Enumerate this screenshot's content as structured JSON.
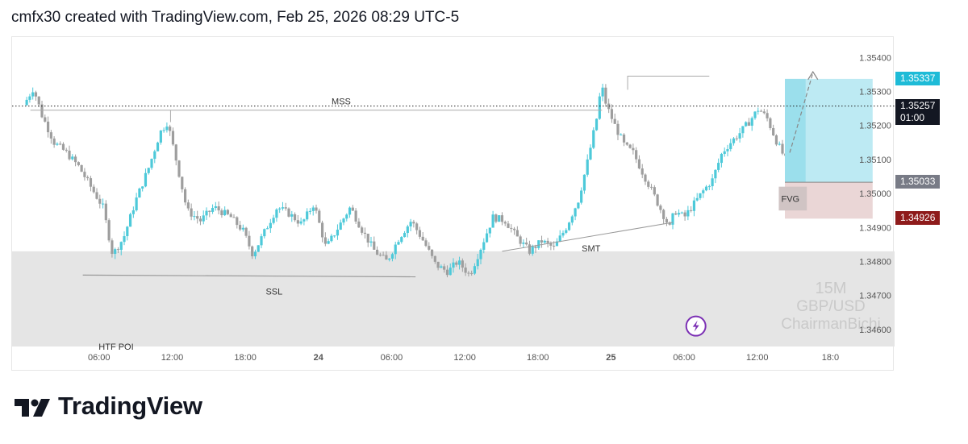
{
  "header": {
    "text": "cmfx30 created with TradingView.com, Feb 25, 2026 08:29 UTC-5"
  },
  "brand": {
    "name": "TradingView"
  },
  "watermark": {
    "lines": [
      "15M",
      "GBP/USD",
      "ChairmanBichi"
    ]
  },
  "colors": {
    "candle_up": "#4dc9d9",
    "candle_down": "#9e9e9e",
    "zone": "#e5e5e5",
    "tp_zone": "#bdeaf3",
    "sl_zone": "#ead6d6",
    "price_tag": "#1ebbd7",
    "current_tag": "#131722",
    "entry_tag": "#787b86",
    "stop_tag": "#8e1b1b",
    "accent_purple": "#7b2fb4"
  },
  "chart_data": {
    "type": "candlestick",
    "symbol": "GBP/USD",
    "timeframe": "15M",
    "y_ticks": [
      "1.35400",
      "1.35300",
      "1.35200",
      "1.35100",
      "1.35000",
      "1.34900",
      "1.34800",
      "1.34700",
      "1.34600"
    ],
    "ylim": [
      1.3455,
      1.3546
    ],
    "x_ticks": [
      {
        "label": "06:00",
        "t": 6,
        "bold": false
      },
      {
        "label": "12:00",
        "t": 12,
        "bold": false
      },
      {
        "label": "18:00",
        "t": 18,
        "bold": false
      },
      {
        "label": "24",
        "t": 24,
        "bold": true
      },
      {
        "label": "06:00",
        "t": 30,
        "bold": false
      },
      {
        "label": "12:00",
        "t": 36,
        "bold": false
      },
      {
        "label": "18:00",
        "t": 42,
        "bold": false
      },
      {
        "label": "25",
        "t": 48,
        "bold": true
      },
      {
        "label": "06:00",
        "t": 54,
        "bold": false
      },
      {
        "label": "12:00",
        "t": 60,
        "bold": false
      },
      {
        "label": "18:0",
        "t": 66,
        "bold": false
      }
    ],
    "xlim": [
      0,
      64
    ],
    "series_keypoints": [
      [
        0,
        1.3526
      ],
      [
        0.8,
        1.3531
      ],
      [
        1.5,
        1.3523
      ],
      [
        2.5,
        1.3515
      ],
      [
        3.5,
        1.3512
      ],
      [
        4.5,
        1.3508
      ],
      [
        5.5,
        1.3502
      ],
      [
        6.5,
        1.3496
      ],
      [
        7.3,
        1.3482
      ],
      [
        8.2,
        1.3487
      ],
      [
        9.2,
        1.3498
      ],
      [
        10.3,
        1.3508
      ],
      [
        11.2,
        1.3518
      ],
      [
        11.8,
        1.3521
      ],
      [
        12.5,
        1.351
      ],
      [
        13.4,
        1.3495
      ],
      [
        14.5,
        1.3492
      ],
      [
        15.6,
        1.3496
      ],
      [
        17.0,
        1.3493
      ],
      [
        18.0,
        1.3489
      ],
      [
        18.8,
        1.3482
      ],
      [
        19.8,
        1.3489
      ],
      [
        20.8,
        1.3496
      ],
      [
        21.8,
        1.3494
      ],
      [
        22.8,
        1.3491
      ],
      [
        23.8,
        1.3497
      ],
      [
        24.8,
        1.3484
      ],
      [
        25.8,
        1.349
      ],
      [
        26.8,
        1.3496
      ],
      [
        27.8,
        1.3489
      ],
      [
        28.8,
        1.3483
      ],
      [
        29.8,
        1.348
      ],
      [
        30.8,
        1.3487
      ],
      [
        31.8,
        1.3492
      ],
      [
        32.8,
        1.3486
      ],
      [
        33.8,
        1.3479
      ],
      [
        34.8,
        1.3477
      ],
      [
        35.6,
        1.348
      ],
      [
        36.6,
        1.3476
      ],
      [
        37.5,
        1.3484
      ],
      [
        38.5,
        1.3493
      ],
      [
        39.5,
        1.3492
      ],
      [
        40.5,
        1.3487
      ],
      [
        41.5,
        1.3483
      ],
      [
        42.5,
        1.3486
      ],
      [
        43.5,
        1.3484
      ],
      [
        44.5,
        1.349
      ],
      [
        45.5,
        1.3498
      ],
      [
        46.3,
        1.351
      ],
      [
        47.0,
        1.3522
      ],
      [
        47.4,
        1.3532
      ],
      [
        47.8,
        1.3526
      ],
      [
        48.5,
        1.352
      ],
      [
        49.3,
        1.3514
      ],
      [
        50.0,
        1.3512
      ],
      [
        50.8,
        1.3506
      ],
      [
        51.5,
        1.3501
      ],
      [
        52.3,
        1.3495
      ],
      [
        53.0,
        1.349
      ],
      [
        53.4,
        1.3495
      ],
      [
        54.2,
        1.3493
      ],
      [
        55.0,
        1.3497
      ],
      [
        55.8,
        1.3501
      ],
      [
        56.5,
        1.3504
      ],
      [
        57.3,
        1.3512
      ],
      [
        58.0,
        1.3515
      ],
      [
        58.8,
        1.3518
      ],
      [
        59.5,
        1.3521
      ],
      [
        60.3,
        1.3525
      ],
      [
        61.0,
        1.3522
      ],
      [
        61.8,
        1.3515
      ],
      [
        62.5,
        1.351
      ],
      [
        63.1,
        1.35
      ],
      [
        63.4,
        1.3493
      ],
      [
        64.0,
        1.3498
      ]
    ],
    "annotations": [
      {
        "label": "MSS",
        "type": "level",
        "price": 1.35245
      },
      {
        "label": "SSL",
        "type": "level",
        "price": 1.3476
      },
      {
        "label": "SMT",
        "type": "trendline"
      },
      {
        "label": "FVG",
        "type": "box"
      },
      {
        "label": "HTF POI",
        "type": "zone",
        "price_from": 1.3483,
        "price_to": 1.34555
      }
    ],
    "price_tags": [
      {
        "label": "1.35337",
        "kind": "take-profit"
      },
      {
        "label": "1.35257",
        "sub": "01:00",
        "kind": "current"
      },
      {
        "label": "1.35033",
        "kind": "entry"
      },
      {
        "label": "1.34926",
        "kind": "stop-loss"
      }
    ]
  }
}
